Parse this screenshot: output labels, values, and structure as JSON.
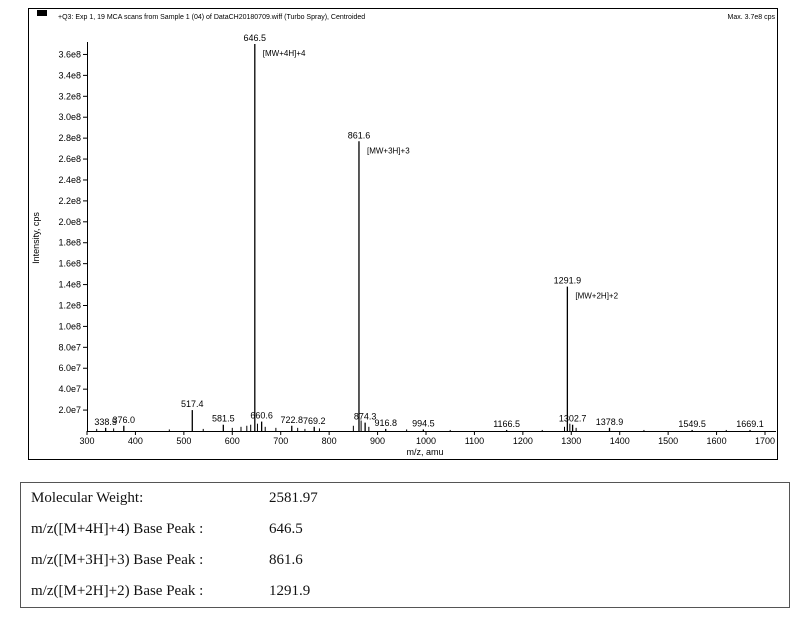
{
  "chart_data": {
    "type": "mass-spectrum",
    "title": "+Q3: Exp 1, 19 MCA scans from Sample 1 (04) of DataCH20180709.wiff (Turbo Spray), Centroided",
    "max_label": "Max. 3.7e8 cps",
    "xlabel": "m/z, amu",
    "ylabel": "Intensity, cps",
    "xlim": [
      300,
      1700
    ],
    "ylim": [
      0,
      370000000.0
    ],
    "x_ticks": [
      300,
      400,
      500,
      600,
      700,
      800,
      900,
      1000,
      1100,
      1200,
      1300,
      1400,
      1500,
      1600,
      1700
    ],
    "y_ticks": [
      {
        "value": 20000000.0,
        "label": "2.0e7"
      },
      {
        "value": 40000000.0,
        "label": "4.0e7"
      },
      {
        "value": 60000000.0,
        "label": "6.0e7"
      },
      {
        "value": 80000000.0,
        "label": "8.0e7"
      },
      {
        "value": 100000000.0,
        "label": "1.0e8"
      },
      {
        "value": 120000000.0,
        "label": "1.2e8"
      },
      {
        "value": 140000000.0,
        "label": "1.4e8"
      },
      {
        "value": 160000000.0,
        "label": "1.6e8"
      },
      {
        "value": 180000000.0,
        "label": "1.8e8"
      },
      {
        "value": 200000000.0,
        "label": "2.0e8"
      },
      {
        "value": 220000000.0,
        "label": "2.2e8"
      },
      {
        "value": 240000000.0,
        "label": "2.4e8"
      },
      {
        "value": 260000000.0,
        "label": "2.6e8"
      },
      {
        "value": 280000000.0,
        "label": "2.8e8"
      },
      {
        "value": 300000000.0,
        "label": "3.0e8"
      },
      {
        "value": 320000000.0,
        "label": "3.2e8"
      },
      {
        "value": 340000000.0,
        "label": "3.4e8"
      },
      {
        "value": 360000000.0,
        "label": "3.6e8"
      }
    ],
    "peaks": [
      {
        "mz": 338.5,
        "intensity": 3000000.0,
        "label": "338.5"
      },
      {
        "mz": 376.0,
        "intensity": 5000000.0,
        "label": "376.0"
      },
      {
        "mz": 517.4,
        "intensity": 20000000.0,
        "label": "517.4"
      },
      {
        "mz": 581.5,
        "intensity": 6000000.0,
        "label": "581.5"
      },
      {
        "mz": 646.5,
        "intensity": 370000000.0,
        "label": "646.5",
        "annotation": "[MW+4H]+4"
      },
      {
        "mz": 660.6,
        "intensity": 9000000.0,
        "label": "660.6"
      },
      {
        "mz": 722.8,
        "intensity": 5000000.0,
        "label": "722.8"
      },
      {
        "mz": 769.2,
        "intensity": 4000000.0,
        "label": "769.2"
      },
      {
        "mz": 861.6,
        "intensity": 277000000.0,
        "label": "861.6",
        "annotation": "[MW+3H]+3"
      },
      {
        "mz": 874.3,
        "intensity": 8000000.0,
        "label": "874.3"
      },
      {
        "mz": 916.8,
        "intensity": 2000000.0,
        "label": "916.8"
      },
      {
        "mz": 994.5,
        "intensity": 1500000.0,
        "label": "994.5"
      },
      {
        "mz": 1166.5,
        "intensity": 1000000.0,
        "label": "1166.5"
      },
      {
        "mz": 1291.9,
        "intensity": 138000000.0,
        "label": "1291.9",
        "annotation": "[MW+2H]+2"
      },
      {
        "mz": 1302.7,
        "intensity": 6000000.0,
        "label": "1302.7"
      },
      {
        "mz": 1378.9,
        "intensity": 3000000.0,
        "label": "1378.9"
      },
      {
        "mz": 1549.5,
        "intensity": 1000000.0,
        "label": "1549.5"
      },
      {
        "mz": 1669.1,
        "intensity": 1000000.0,
        "label": "1669.1"
      }
    ],
    "minor_peaks": [
      {
        "mz": 320,
        "intensity": 2000000.0
      },
      {
        "mz": 355,
        "intensity": 2500000.0
      },
      {
        "mz": 470,
        "intensity": 1500000.0
      },
      {
        "mz": 540,
        "intensity": 2000000.0
      },
      {
        "mz": 600,
        "intensity": 3000000.0
      },
      {
        "mz": 618,
        "intensity": 4000000.0
      },
      {
        "mz": 630,
        "intensity": 5000000.0
      },
      {
        "mz": 638,
        "intensity": 6000000.0
      },
      {
        "mz": 652,
        "intensity": 7000000.0
      },
      {
        "mz": 668,
        "intensity": 4000000.0
      },
      {
        "mz": 690,
        "intensity": 3000000.0
      },
      {
        "mz": 735,
        "intensity": 3000000.0
      },
      {
        "mz": 750,
        "intensity": 2000000.0
      },
      {
        "mz": 780,
        "intensity": 2500000.0
      },
      {
        "mz": 850,
        "intensity": 5000000.0
      },
      {
        "mz": 866,
        "intensity": 10000000.0
      },
      {
        "mz": 882,
        "intensity": 4000000.0
      },
      {
        "mz": 960,
        "intensity": 1500000.0
      },
      {
        "mz": 1050,
        "intensity": 1000000.0
      },
      {
        "mz": 1240,
        "intensity": 1000000.0
      },
      {
        "mz": 1286,
        "intensity": 4000000.0
      },
      {
        "mz": 1297,
        "intensity": 7000000.0
      },
      {
        "mz": 1310,
        "intensity": 3000000.0
      },
      {
        "mz": 1450,
        "intensity": 1000000.0
      },
      {
        "mz": 1620,
        "intensity": 1000000.0
      }
    ]
  },
  "info_table": [
    {
      "label": "Molecular Weight:",
      "value": "2581.97"
    },
    {
      "label": "m/z([M+4H]+4) Base Peak :",
      "value": "646.5"
    },
    {
      "label": "m/z([M+3H]+3) Base Peak :",
      "value": "861.6"
    },
    {
      "label": "m/z([M+2H]+2) Base Peak :",
      "value": "1291.9"
    }
  ]
}
